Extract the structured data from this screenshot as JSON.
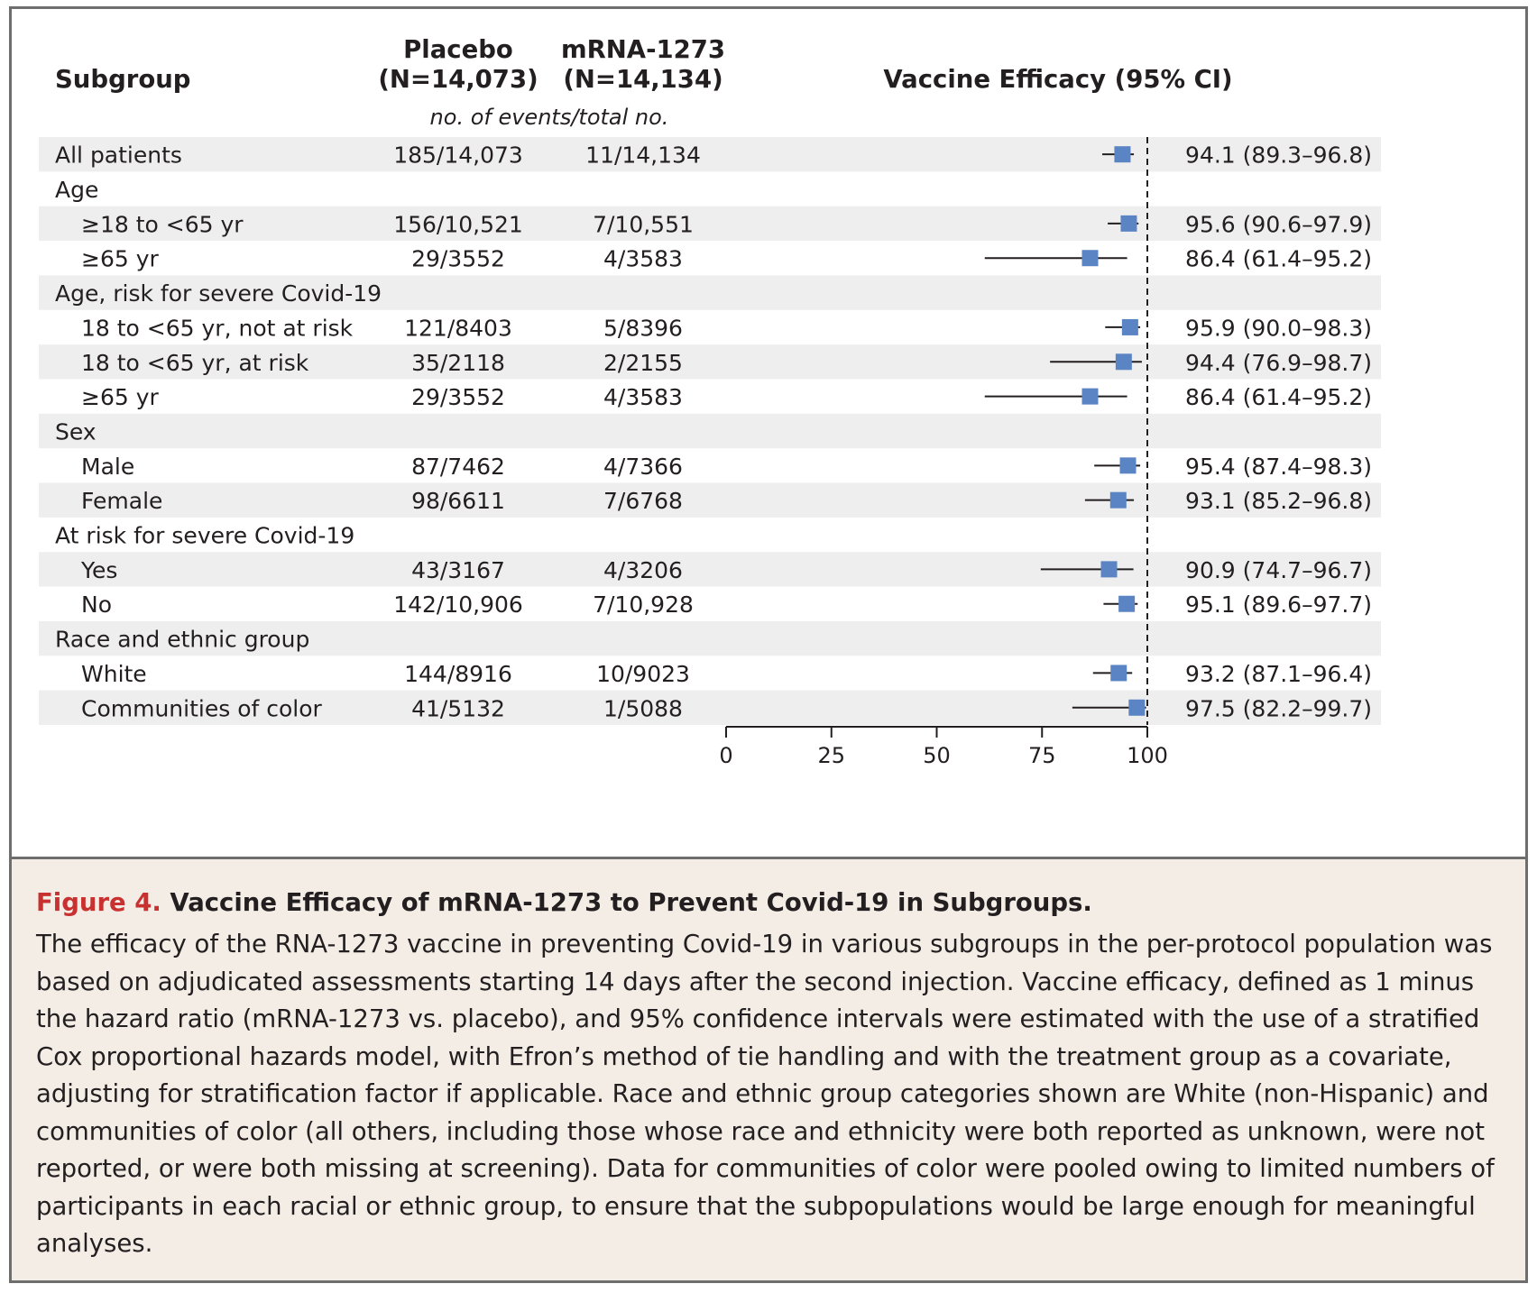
{
  "chart_data": {
    "type": "forest",
    "columns": {
      "subgroup": "Subgroup",
      "placebo": "Placebo",
      "placebo_n": "(N=14,073)",
      "vaccine": "mRNA-1273",
      "vaccine_n": "(N=14,134)",
      "subheader": "no. of events/total no.",
      "efficacy": "Vaccine Efficacy (95% CI)"
    },
    "xaxis": {
      "ticks": [
        0,
        25,
        50,
        75,
        100
      ],
      "range": [
        0,
        100
      ]
    },
    "reference_line": 100,
    "colors": {
      "marker": "#5b84c4",
      "row_shade": "#eeeeee",
      "line": "#231f20"
    },
    "rows": [
      {
        "label": "All patients",
        "indent": 0,
        "shaded": true,
        "placebo": "185/14,073",
        "vaccine": "11/14,134",
        "ve": 94.1,
        "lo": 89.3,
        "hi": 96.8,
        "text": "94.1 (89.3–96.8)"
      },
      {
        "label": "Age",
        "indent": 0,
        "shaded": false,
        "header": true
      },
      {
        "label": "≥18 to <65 yr",
        "indent": 1,
        "shaded": true,
        "placebo": "156/10,521",
        "vaccine": "7/10,551",
        "ve": 95.6,
        "lo": 90.6,
        "hi": 97.9,
        "text": "95.6 (90.6–97.9)"
      },
      {
        "label": "≥65 yr",
        "indent": 1,
        "shaded": false,
        "placebo": "29/3552",
        "vaccine": "4/3583",
        "ve": 86.4,
        "lo": 61.4,
        "hi": 95.2,
        "text": "86.4 (61.4–95.2)"
      },
      {
        "label": "Age, risk for severe Covid-19",
        "indent": 0,
        "shaded": true,
        "header": true
      },
      {
        "label": "18 to <65 yr, not at risk",
        "indent": 1,
        "shaded": false,
        "placebo": "121/8403",
        "vaccine": "5/8396",
        "ve": 95.9,
        "lo": 90.0,
        "hi": 98.3,
        "text": "95.9 (90.0–98.3)"
      },
      {
        "label": "18 to <65 yr, at risk",
        "indent": 1,
        "shaded": true,
        "placebo": "35/2118",
        "vaccine": "2/2155",
        "ve": 94.4,
        "lo": 76.9,
        "hi": 98.7,
        "text": "94.4 (76.9–98.7)"
      },
      {
        "label": "≥65 yr",
        "indent": 1,
        "shaded": false,
        "placebo": "29/3552",
        "vaccine": "4/3583",
        "ve": 86.4,
        "lo": 61.4,
        "hi": 95.2,
        "text": "86.4 (61.4–95.2)"
      },
      {
        "label": "Sex",
        "indent": 0,
        "shaded": true,
        "header": true
      },
      {
        "label": "Male",
        "indent": 1,
        "shaded": false,
        "placebo": "87/7462",
        "vaccine": "4/7366",
        "ve": 95.4,
        "lo": 87.4,
        "hi": 98.3,
        "text": "95.4 (87.4–98.3)"
      },
      {
        "label": "Female",
        "indent": 1,
        "shaded": true,
        "placebo": "98/6611",
        "vaccine": "7/6768",
        "ve": 93.1,
        "lo": 85.2,
        "hi": 96.8,
        "text": "93.1 (85.2–96.8)"
      },
      {
        "label": "At risk for severe Covid-19",
        "indent": 0,
        "shaded": false,
        "header": true
      },
      {
        "label": "Yes",
        "indent": 1,
        "shaded": true,
        "placebo": "43/3167",
        "vaccine": "4/3206",
        "ve": 90.9,
        "lo": 74.7,
        "hi": 96.7,
        "text": "90.9 (74.7–96.7)"
      },
      {
        "label": "No",
        "indent": 1,
        "shaded": false,
        "placebo": "142/10,906",
        "vaccine": "7/10,928",
        "ve": 95.1,
        "lo": 89.6,
        "hi": 97.7,
        "text": "95.1 (89.6–97.7)"
      },
      {
        "label": "Race and ethnic group",
        "indent": 0,
        "shaded": true,
        "header": true
      },
      {
        "label": "White",
        "indent": 1,
        "shaded": false,
        "placebo": "144/8916",
        "vaccine": "10/9023",
        "ve": 93.2,
        "lo": 87.1,
        "hi": 96.4,
        "text": "93.2 (87.1–96.4)"
      },
      {
        "label": "Communities of color",
        "indent": 1,
        "shaded": true,
        "placebo": "41/5132",
        "vaccine": "1/5088",
        "ve": 97.5,
        "lo": 82.2,
        "hi": 99.7,
        "text": "97.5 (82.2–99.7)"
      }
    ]
  },
  "caption": {
    "label": "Figure 4.",
    "title": "Vaccine Efficacy of mRNA-1273 to Prevent Covid-19 in Subgroups.",
    "body": "The efficacy of the RNA-1273 vaccine in preventing Covid-19 in various subgroups in the per-protocol population was based on adjudicated assessments starting 14 days after the second injection. Vaccine efficacy, defined as 1 minus the hazard ratio (mRNA-1273 vs. placebo), and 95% confidence intervals were estimated with the use of a stratified Cox proportional hazards model, with Efron’s method of tie handling and with the treatment group as a covariate, adjusting for stratification factor if applicable. Race and ethnic group categories shown are White (non-Hispanic) and communities of color (all others, including those whose race and ethnicity were both reported as unknown, were not reported, or were both missing at screening). Data for communities of color were pooled owing to limited numbers of participants in each racial or ethnic group, to ensure that the subpopulations would be large enough for meaningful analyses."
  }
}
